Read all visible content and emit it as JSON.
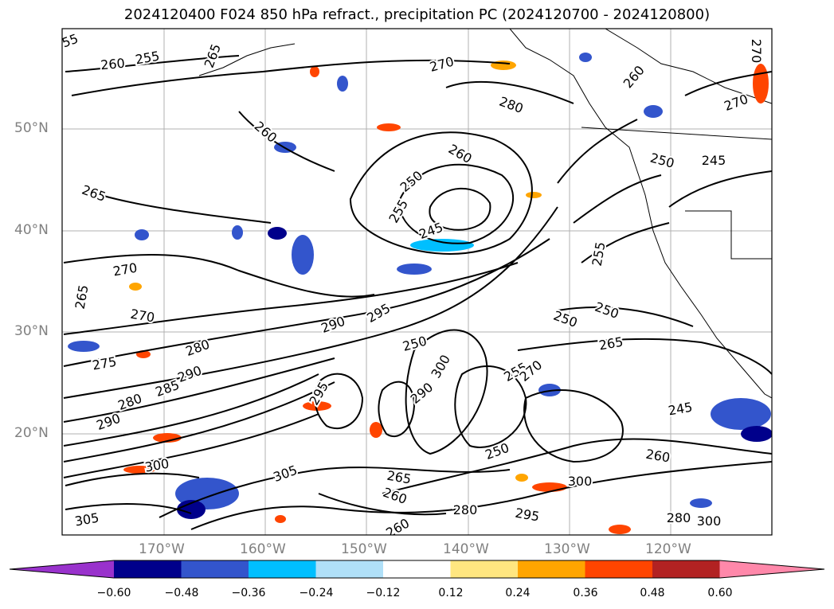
{
  "title": "2024120400 F024 850 hPa refract., precipitation PC (2024120700 - 2024120800)",
  "lat_labels": [
    "50°N",
    "40°N",
    "30°N",
    "20°N"
  ],
  "lon_labels": [
    "170°W",
    "160°W",
    "150°W",
    "140°W",
    "130°W",
    "120°W"
  ],
  "colorbar": {
    "ticks": [
      "−0.60",
      "−0.48",
      "−0.36",
      "−0.24",
      "−0.12",
      "0.12",
      "0.24",
      "0.36",
      "0.48",
      "0.60"
    ],
    "colors": [
      "#9932cc",
      "#00008b",
      "#3355cc",
      "#00bfff",
      "#b0e0f8",
      "#ffffff",
      "#ffe680",
      "#ffa500",
      "#ff4500",
      "#b22222",
      "#ff88aa"
    ],
    "extend": "both"
  },
  "contour_labels": [
    "255",
    "260",
    "255",
    "265",
    "270",
    "280",
    "260",
    "270",
    "270",
    "260",
    "265",
    "250",
    "255",
    "250",
    "245",
    "260",
    "255",
    "265",
    "270",
    "270",
    "290",
    "295",
    "280",
    "275",
    "290",
    "285",
    "280",
    "290",
    "295",
    "250",
    "265",
    "250",
    "255",
    "265",
    "300",
    "290",
    "280",
    "260",
    "300",
    "305",
    "300",
    "295",
    "280",
    "260",
    "250",
    "270",
    "245",
    "260",
    "300",
    "305",
    "250",
    "245"
  ]
}
